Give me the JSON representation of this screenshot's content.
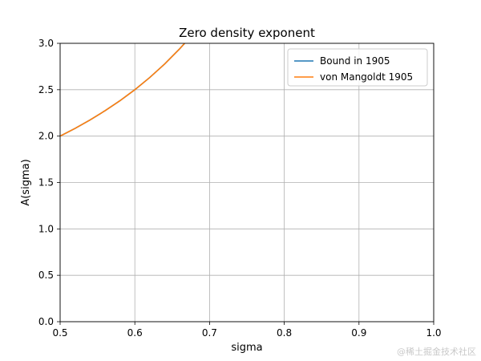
{
  "chart_data": {
    "type": "line",
    "title": "Zero density exponent",
    "xlabel": "sigma",
    "ylabel": "A(sigma)",
    "xlim": [
      0.5,
      1.0
    ],
    "ylim": [
      0.0,
      3.0
    ],
    "xticks": [
      "0.5",
      "0.6",
      "0.7",
      "0.8",
      "0.9",
      "1.0"
    ],
    "yticks": [
      "0.0",
      "0.5",
      "1.0",
      "1.5",
      "2.0",
      "2.5",
      "3.0"
    ],
    "grid": true,
    "legend_position": "top-right",
    "series": [
      {
        "name": "Bound in 1905",
        "color": "#1f77b4",
        "x": [
          0.5,
          0.52,
          0.54,
          0.56,
          0.58,
          0.6,
          0.62,
          0.64,
          0.66,
          0.6667
        ],
        "y": [
          2.0,
          2.083,
          2.174,
          2.273,
          2.381,
          2.5,
          2.632,
          2.778,
          2.941,
          3.0
        ]
      },
      {
        "name": "von Mangoldt 1905",
        "color": "#ff7f0e",
        "x": [
          0.5,
          0.52,
          0.54,
          0.56,
          0.58,
          0.6,
          0.62,
          0.64,
          0.66,
          0.6667
        ],
        "y": [
          2.0,
          2.083,
          2.174,
          2.273,
          2.381,
          2.5,
          2.632,
          2.778,
          2.941,
          3.0
        ]
      }
    ]
  },
  "watermark": "@稀土掘金技术社区"
}
